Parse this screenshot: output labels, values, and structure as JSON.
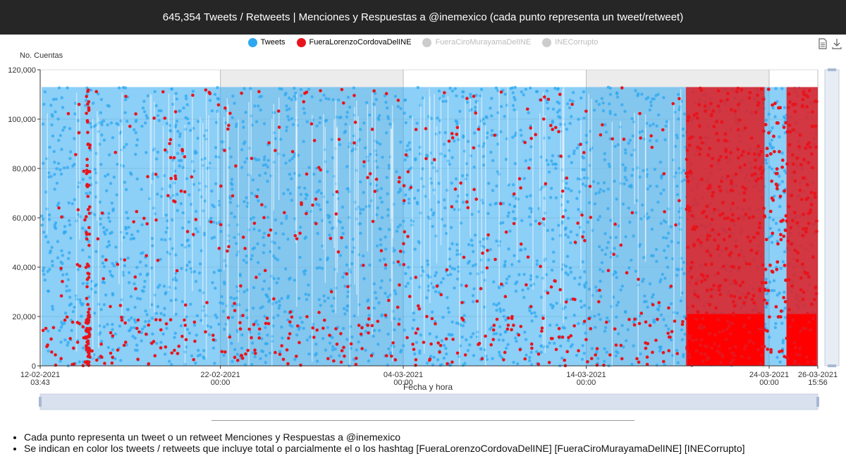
{
  "header": {
    "title": "645,354 Tweets / Retweets | Menciones y Respuestas a @inemexico (cada punto representa un tweet/retweet)"
  },
  "legend": [
    {
      "label": "Tweets",
      "color": "#2da8f0",
      "active": true
    },
    {
      "label": "FueraLorenzoCordovaDelINE",
      "color": "#e8141c",
      "active": true
    },
    {
      "label": "FueraCiroMurayamaDelINE",
      "color": "#cccccc",
      "active": false
    },
    {
      "label": "INECorrupto",
      "color": "#cccccc",
      "active": false
    }
  ],
  "toolbar": {
    "data_view_icon": "document-icon",
    "download_icon": "download-icon"
  },
  "chart_data": {
    "type": "scatter",
    "ylabel": "No. Cuentas",
    "xlabel": "Fecha y hora",
    "ylim": [
      0,
      120000
    ],
    "yticks": [
      "0",
      "20,000",
      "40,000",
      "60,000",
      "80,000",
      "100,000",
      "120,000"
    ],
    "xticks": [
      {
        "date": "12-02-2021",
        "time": "03:43",
        "day": 0
      },
      {
        "date": "22-02-2021",
        "time": "00:00",
        "day": 9.85
      },
      {
        "date": "04-03-2021",
        "time": "00:00",
        "day": 19.85
      },
      {
        "date": "14-03-2021",
        "time": "00:00",
        "day": 29.85
      },
      {
        "date": "24-03-2021",
        "time": "00:00",
        "day": 39.85
      },
      {
        "date": "26-03-2021",
        "time": "15:56",
        "day": 42.51
      }
    ],
    "xlim_days": [
      0,
      42.51
    ],
    "series": [
      {
        "name": "Tweets",
        "color": "#2da8f0",
        "y_max": 113000,
        "description_range": "continuous coverage across all dates"
      },
      {
        "name": "FueraLorenzoCordovaDelINE",
        "color": "#e8141c",
        "y_max": 113000,
        "dense_start_day": 35.3
      }
    ],
    "grid": true,
    "dataZoom": true
  },
  "notes": [
    "Cada punto representa un tweet o un retweet Menciones y Respuestas a @inemexico",
    "Se indican en color los tweets / retweets que incluye total o parcialmente el o los hashtag [FueraLorenzoCordovaDelINE] [FueraCiroMurayamaDelINE] [INECorrupto]"
  ]
}
